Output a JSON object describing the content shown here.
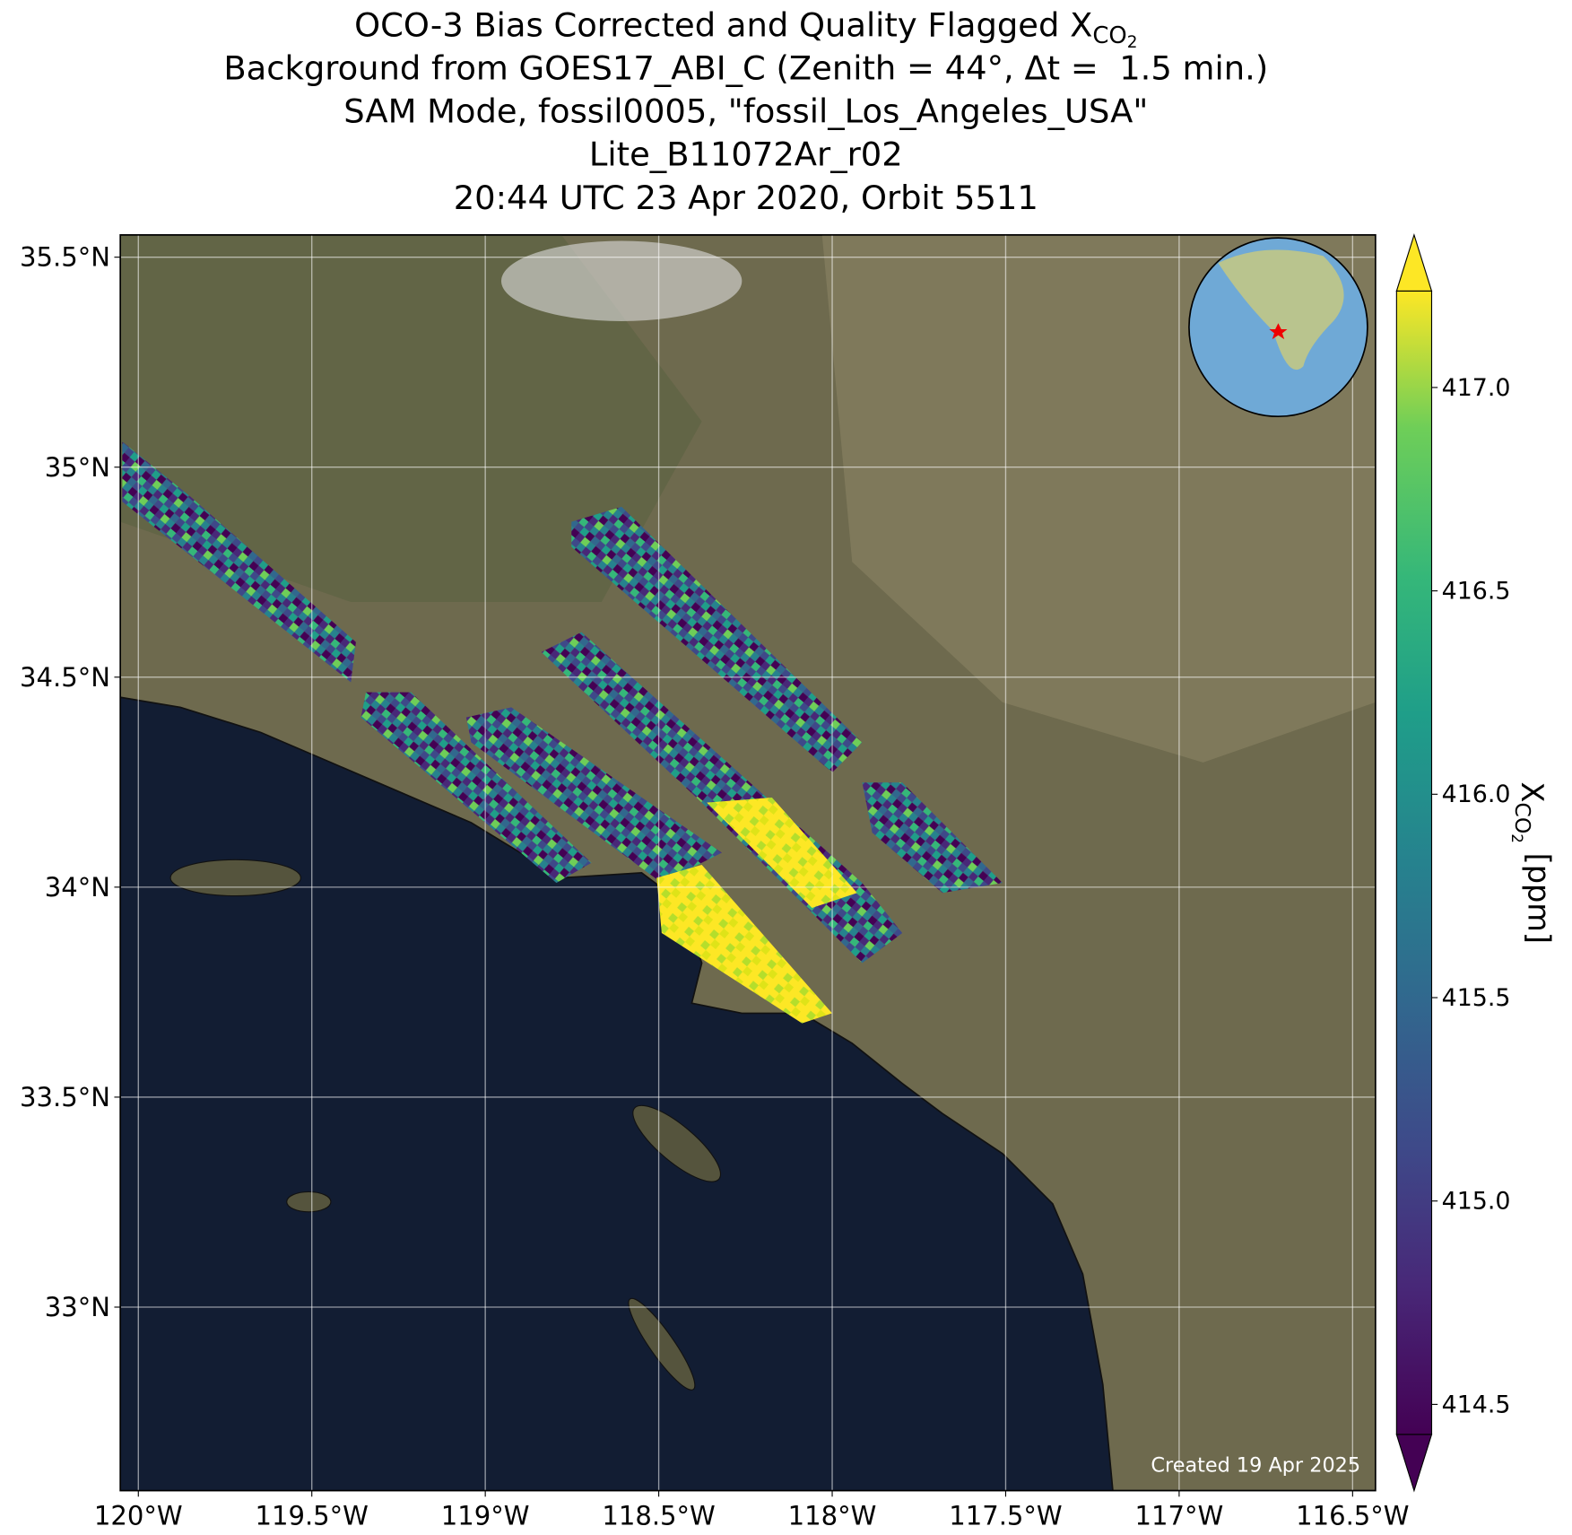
{
  "chart_data": {
    "type": "map",
    "title": [
      {
        "text": "OCO-3 Bias Corrected and Quality Flagged X",
        "sub": "CO",
        "subsub": "2"
      },
      "Background from GOES17_ABI_C (Zenith = 44°, Δt =  1.5 min.)",
      "SAM Mode, fossil0005, \"fossil_Los_Angeles_USA\"",
      "Lite_B11072Ar_r02",
      "20:44 UTC 23 Apr 2020, Orbit 5511"
    ],
    "xlim": [
      -120.052,
      -116.434
    ],
    "ylim": [
      32.563,
      35.553
    ],
    "xticks": [
      {
        "value": -120,
        "label": "120°W"
      },
      {
        "value": -119.5,
        "label": "119.5°W"
      },
      {
        "value": -119,
        "label": "119°W"
      },
      {
        "value": -118.5,
        "label": "118.5°W"
      },
      {
        "value": -118,
        "label": "118°W"
      },
      {
        "value": -117.5,
        "label": "117.5°W"
      },
      {
        "value": -117,
        "label": "117°W"
      },
      {
        "value": -116.5,
        "label": "116.5°W"
      }
    ],
    "yticks": [
      {
        "value": 33,
        "label": "33°N"
      },
      {
        "value": 33.5,
        "label": "33.5°N"
      },
      {
        "value": 34,
        "label": "34°N"
      },
      {
        "value": 34.5,
        "label": "34.5°N"
      },
      {
        "value": 35,
        "label": "35°N"
      },
      {
        "value": 35.5,
        "label": "35.5°N"
      }
    ],
    "grid": true,
    "colorbar": {
      "lim": [
        414.426,
        417.237
      ],
      "ticks": [
        {
          "value": 414.5,
          "label": "414.5"
        },
        {
          "value": 415,
          "label": "415.0"
        },
        {
          "value": 415.5,
          "label": "415.5"
        },
        {
          "value": 416,
          "label": "416.0"
        },
        {
          "value": 416.5,
          "label": "416.5"
        },
        {
          "value": 417,
          "label": "417.0"
        }
      ],
      "label": {
        "text": "X",
        "sub": "CO",
        "subsub": "2",
        "unit": " [ppm]"
      }
    },
    "note": "Created 19 Apr 2025"
  }
}
